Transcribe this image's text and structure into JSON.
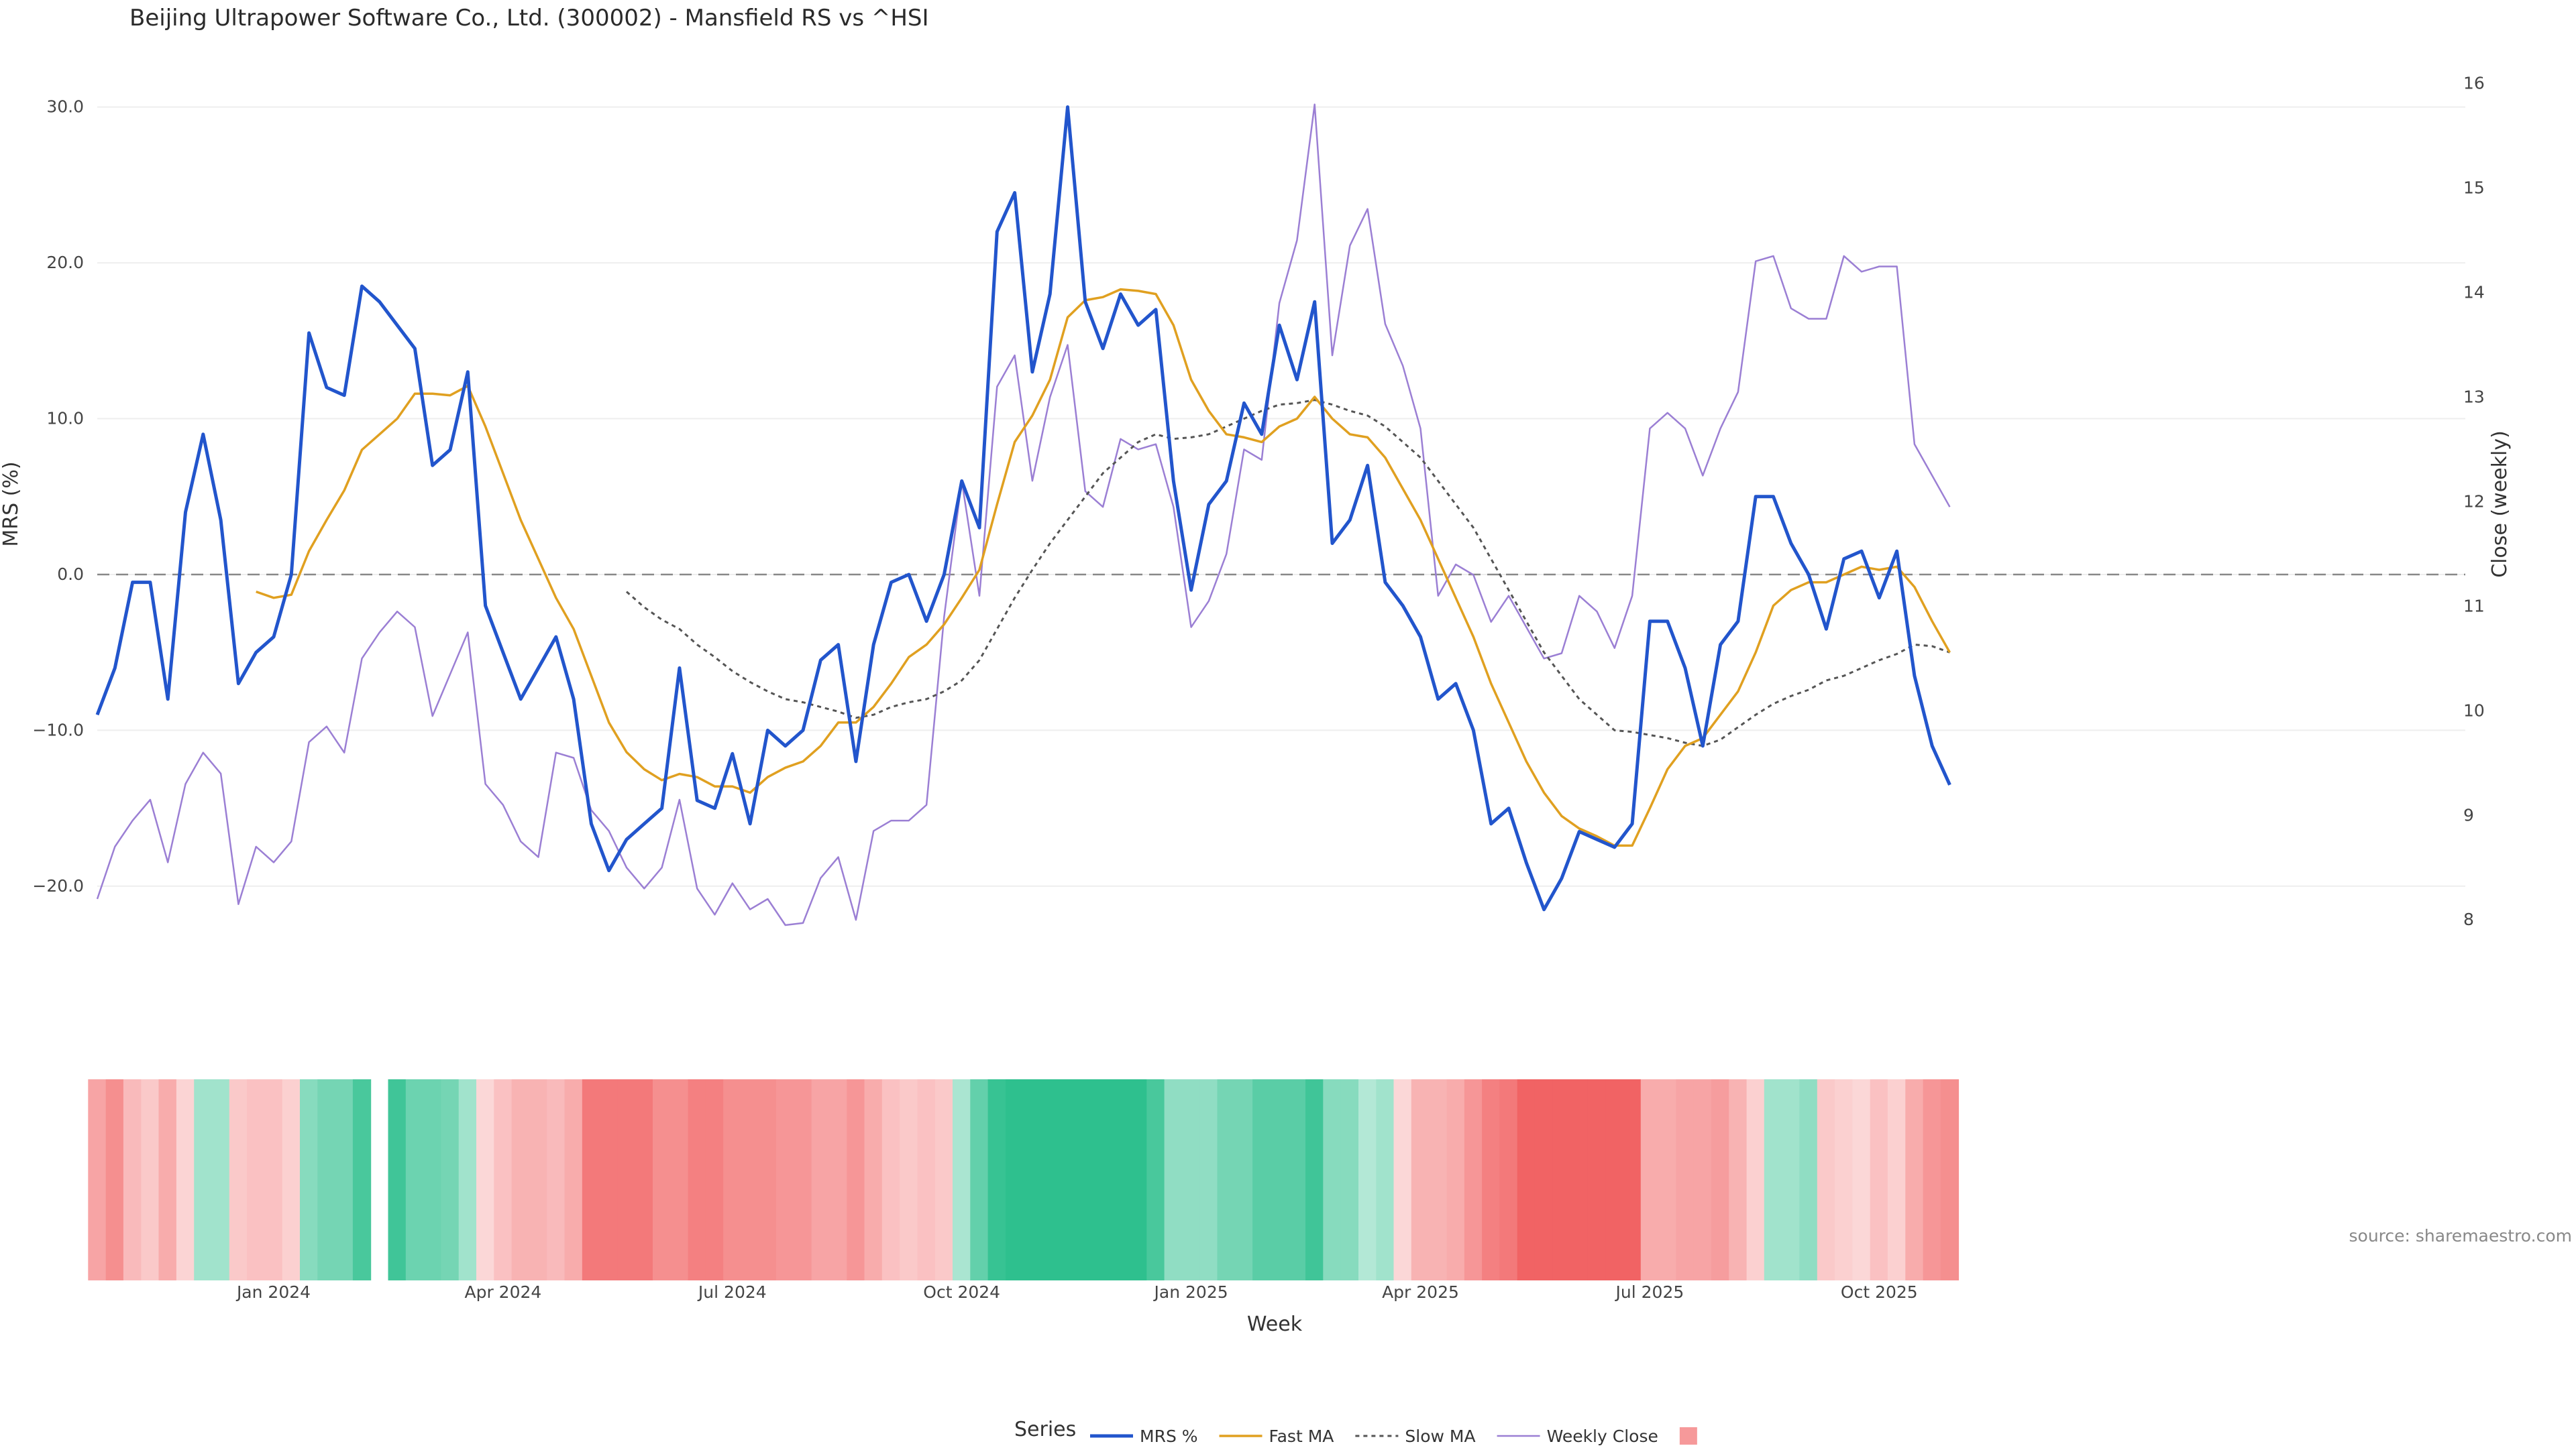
{
  "title": "Beijing Ultrapower Software Co., Ltd. (300002) - Mansfield RS vs ^HSI",
  "source": "source: sharemaestro.com",
  "colors": {
    "mrs": "#2255cc",
    "fast_ma": "#e0a020",
    "slow_ma": "#555555",
    "close": "#9b7fd4",
    "zero_line": "#888888",
    "grid": "#eeeeee",
    "heat_pos": "#2ec08e",
    "heat_neg": "#f05556"
  },
  "chart_data": {
    "type": "line",
    "xlabel": "Week",
    "ylabel_left": "MRS (%)",
    "ylabel_right": "Close (weekly)",
    "ylim_left": [
      -22.5,
      30.5
    ],
    "ylim_right": [
      7.95,
      15.85
    ],
    "yticks_left": [
      30.0,
      20.0,
      10.0,
      0.0,
      -10.0,
      -20.0
    ],
    "yticks_left_labels": [
      "30.0",
      "20.0",
      "10.0",
      "0.0",
      "−10.0",
      "−20.0"
    ],
    "yticks_right": [
      16,
      15,
      14,
      13,
      12,
      11,
      10,
      9,
      8
    ],
    "x_start": "2023-11-03",
    "x_step_days": 7,
    "x_ticks": [
      {
        "label": "Jan 2024",
        "index": 10
      },
      {
        "label": "Apr 2024",
        "index": 23
      },
      {
        "label": "Jul 2024",
        "index": 36
      },
      {
        "label": "Oct 2024",
        "index": 49
      },
      {
        "label": "Jan 2025",
        "index": 62
      },
      {
        "label": "Apr 2025",
        "index": 75
      },
      {
        "label": "Jul 2025",
        "index": 88
      },
      {
        "label": "Oct 2025",
        "index": 101
      }
    ],
    "legend_title": "Series",
    "legend_position": "bottom-center",
    "series": [
      {
        "name": "MRS %",
        "axis": "left",
        "values": [
          -9,
          -6,
          -0.5,
          -0.5,
          -8,
          4,
          9,
          3.5,
          -7,
          -5,
          -4,
          0,
          15.5,
          12,
          11.5,
          18.5,
          17.5,
          16,
          14.5,
          7,
          8,
          13,
          -2,
          -5,
          -8,
          -6,
          -4,
          -8,
          -16,
          -19,
          -17,
          -16,
          -15,
          -6,
          -14.5,
          -15,
          -11.5,
          -16,
          -10,
          -11,
          -10,
          -5.5,
          -4.5,
          -12,
          -4.5,
          -0.5,
          0,
          -3,
          0,
          6,
          3,
          22,
          24.5,
          13,
          18,
          30,
          17.5,
          14.5,
          18,
          16,
          17,
          6,
          -1,
          4.5,
          6,
          11,
          9,
          16,
          12.5,
          17.5,
          2,
          3.5,
          7,
          -0.5,
          -2,
          -4,
          -8,
          -7,
          -10,
          -16,
          -15,
          -18.5,
          -21.5,
          -19.5,
          -16.5,
          -17,
          -17.5,
          -16,
          -3,
          -3,
          -6,
          -11,
          -4.5,
          -3,
          5,
          5,
          2,
          0,
          -3.5,
          1,
          1.5,
          -1.5,
          1.5,
          -6.5,
          -11,
          -13.5
        ]
      },
      {
        "name": "Fast MA",
        "axis": "left",
        "values": [
          null,
          null,
          null,
          null,
          null,
          null,
          null,
          null,
          null,
          -1.1,
          -1.5,
          -1.3,
          1.5,
          3.5,
          5.4,
          8,
          9,
          10,
          11.6,
          11.6,
          11.5,
          12.1,
          9.5,
          6.5,
          3.5,
          1,
          -1.5,
          -3.5,
          -6.5,
          -9.5,
          -11.4,
          -12.5,
          -13.2,
          -12.8,
          -13,
          -13.6,
          -13.6,
          -14,
          -13,
          -12.4,
          -12,
          -11,
          -9.5,
          -9.5,
          -8.5,
          -7,
          -5.3,
          -4.5,
          -3.2,
          -1.5,
          0.3,
          4.5,
          8.5,
          10.2,
          12.5,
          16.5,
          17.6,
          17.8,
          18.3,
          18.2,
          18,
          16,
          12.5,
          10.5,
          9,
          8.8,
          8.5,
          9.5,
          10,
          11.4,
          10,
          9,
          8.8,
          7.5,
          5.5,
          3.5,
          1,
          -1.5,
          -4,
          -7,
          -9.5,
          -12,
          -14,
          -15.5,
          -16.3,
          -16.8,
          -17.4,
          -17.4,
          -15,
          -12.5,
          -11,
          -10.5,
          -9,
          -7.5,
          -5,
          -2,
          -1,
          -0.5,
          -0.5,
          0,
          0.5,
          0.3,
          0.5,
          -0.8,
          -3,
          -5
        ]
      },
      {
        "name": "Slow MA",
        "axis": "left",
        "values": [
          null,
          null,
          null,
          null,
          null,
          null,
          null,
          null,
          null,
          null,
          null,
          null,
          null,
          null,
          null,
          null,
          null,
          null,
          null,
          null,
          null,
          null,
          null,
          null,
          null,
          null,
          null,
          null,
          null,
          null,
          -1.1,
          -2.1,
          -2.9,
          -3.5,
          -4.5,
          -5.3,
          -6.2,
          -6.9,
          -7.5,
          -8,
          -8.2,
          -8.5,
          -8.8,
          -9.2,
          -9,
          -8.5,
          -8.2,
          -8,
          -7.5,
          -6.8,
          -5.5,
          -3.5,
          -1.5,
          0.3,
          2,
          3.5,
          5,
          6.5,
          7.5,
          8.5,
          9,
          8.7,
          8.8,
          9,
          9.5,
          10,
          10.5,
          10.9,
          11,
          11.2,
          10.9,
          10.5,
          10.2,
          9.5,
          8.5,
          7.5,
          6,
          4.5,
          3,
          1,
          -1,
          -3,
          -5,
          -6.5,
          -8,
          -9,
          -10,
          -10.1,
          -10.3,
          -10.5,
          -10.8,
          -11,
          -10.6,
          -9.8,
          -9,
          -8.3,
          -7.8,
          -7.4,
          -6.8,
          -6.5,
          -6,
          -5.5,
          -5.1,
          -4.5,
          -4.6,
          -5
        ]
      },
      {
        "name": "Weekly Close",
        "axis": "right",
        "values": [
          8.2,
          8.7,
          8.95,
          9.15,
          8.55,
          9.3,
          9.6,
          9.4,
          8.15,
          8.7,
          8.55,
          8.75,
          9.7,
          9.85,
          9.6,
          10.5,
          10.75,
          10.95,
          10.8,
          9.95,
          10.35,
          10.75,
          9.3,
          9.1,
          8.75,
          8.6,
          9.6,
          9.55,
          9.05,
          8.85,
          8.5,
          8.3,
          8.5,
          9.15,
          8.3,
          8.05,
          8.35,
          8.1,
          8.2,
          7.95,
          7.97,
          8.4,
          8.6,
          8,
          8.85,
          8.95,
          8.95,
          9.1,
          10.9,
          12.2,
          11.1,
          13.1,
          13.4,
          12.2,
          13,
          13.5,
          12.1,
          11.95,
          12.6,
          12.5,
          12.55,
          11.95,
          10.8,
          11.05,
          11.5,
          12.5,
          12.4,
          13.9,
          14.5,
          15.8,
          13.4,
          14.45,
          14.8,
          13.7,
          13.3,
          12.7,
          11.1,
          11.4,
          11.3,
          10.85,
          11.1,
          10.8,
          10.5,
          10.55,
          11.1,
          10.95,
          10.6,
          11.1,
          12.7,
          12.85,
          12.7,
          12.25,
          12.7,
          13.05,
          14.3,
          14.35,
          13.85,
          13.75,
          13.75,
          14.35,
          14.2,
          14.25,
          14.25,
          12.55,
          12.25,
          11.95
        ]
      }
    ],
    "heatmap": {
      "values": [
        -0.45,
        -0.6,
        -0.3,
        -0.2,
        -0.4,
        -0.12,
        0.35,
        0.35,
        -0.2,
        -0.25,
        -0.25,
        -0.15,
        0.5,
        0.6,
        0.6,
        0.85,
        null,
        0.9,
        0.65,
        0.65,
        0.6,
        0.35,
        -0.1,
        -0.25,
        -0.35,
        -0.35,
        -0.3,
        -0.4,
        -0.75,
        -0.75,
        -0.75,
        -0.75,
        -0.6,
        -0.6,
        -0.7,
        -0.7,
        -0.6,
        -0.6,
        -0.6,
        -0.55,
        -0.55,
        -0.45,
        -0.45,
        -0.55,
        -0.4,
        -0.25,
        -0.2,
        -0.25,
        -0.2,
        0.3,
        0.7,
        0.95,
        1,
        1,
        1,
        1,
        1,
        1,
        1,
        1,
        0.85,
        0.45,
        0.45,
        0.45,
        0.6,
        0.6,
        0.75,
        0.75,
        0.75,
        0.9,
        0.5,
        0.5,
        0.25,
        0.35,
        -0.1,
        -0.35,
        -0.35,
        -0.4,
        -0.55,
        -0.7,
        -0.75,
        -0.9,
        -0.9,
        -0.9,
        -0.9,
        -0.9,
        -0.9,
        -0.9,
        -0.4,
        -0.4,
        -0.45,
        -0.45,
        -0.5,
        -0.35,
        -0.15,
        0.35,
        0.35,
        0.45,
        -0.2,
        -0.15,
        -0.1,
        -0.25,
        -0.15,
        -0.4,
        -0.55,
        -0.6
      ]
    }
  }
}
